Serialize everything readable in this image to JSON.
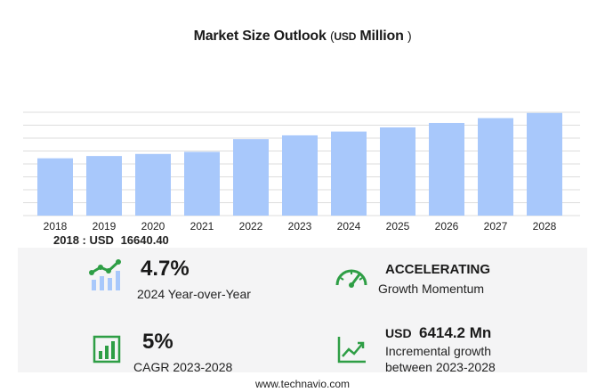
{
  "header": {
    "title": "Market Size Outlook",
    "unit_open": "(",
    "unit_currency": "USD",
    "unit_scale": "Million",
    "unit_close": ")"
  },
  "chart_data": {
    "type": "bar",
    "categories": [
      "2018",
      "2019",
      "2020",
      "2021",
      "2022",
      "2023",
      "2024",
      "2025",
      "2026",
      "2027",
      "2028"
    ],
    "values": [
      16640.4,
      17300,
      17900,
      18500,
      22200,
      23300,
      24400,
      25600,
      26900,
      28300,
      29800
    ],
    "ylim": [
      0,
      30000
    ],
    "grid": true,
    "bar_color": "#a8c8fb",
    "grid_color": "#dddddd"
  },
  "readout": {
    "year": "2018",
    "sep": ": USD",
    "value": "16640.40"
  },
  "kpis": {
    "yoy": {
      "value": "4.7%",
      "label": "2024 Year-over-Year",
      "icon": "growth-bars-icon"
    },
    "momentum": {
      "value": "ACCELERATING",
      "label": "Growth Momentum",
      "icon": "speedometer-icon"
    },
    "cagr": {
      "value": "5%",
      "label": "CAGR 2023-2028",
      "icon": "bar-chart-icon"
    },
    "incremental": {
      "currency": "USD",
      "value": "6414.2 Mn",
      "label_line1": "Incremental growth",
      "label_line2": "between 2023-2028",
      "icon": "trend-line-icon"
    }
  },
  "colors": {
    "icon_green": "#2e9e45",
    "icon_blue": "#a8c8fb",
    "panel_bg": "#f4f4f5"
  },
  "footer": {
    "text": "www.technavio.com"
  }
}
